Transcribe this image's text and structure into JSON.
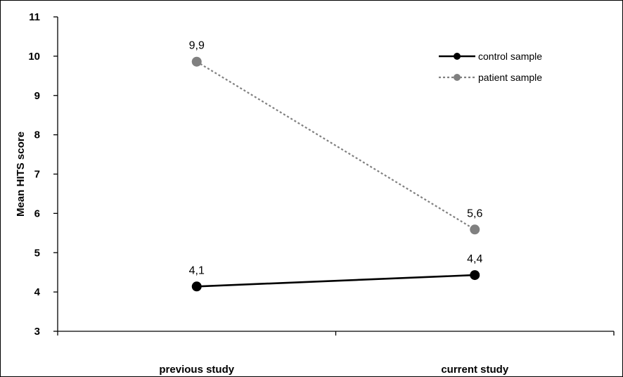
{
  "chart_data": {
    "type": "line",
    "title": "",
    "xlabel": "",
    "ylabel": "Mean HITS score",
    "categories": [
      "previous study",
      "current study"
    ],
    "ylim": [
      3,
      11
    ],
    "yticks": [
      3,
      4,
      5,
      6,
      7,
      8,
      9,
      10,
      11
    ],
    "legend_position": "top-right",
    "series": [
      {
        "name": "control sample",
        "values": [
          4.14,
          4.43
        ],
        "labels": [
          "4,1",
          "4,4"
        ],
        "color": "#000000",
        "line_style": "solid"
      },
      {
        "name": "patient sample",
        "values": [
          9.86,
          5.59
        ],
        "labels": [
          "9,9",
          "5,6"
        ],
        "color": "#808080",
        "line_style": "dotted"
      }
    ]
  }
}
